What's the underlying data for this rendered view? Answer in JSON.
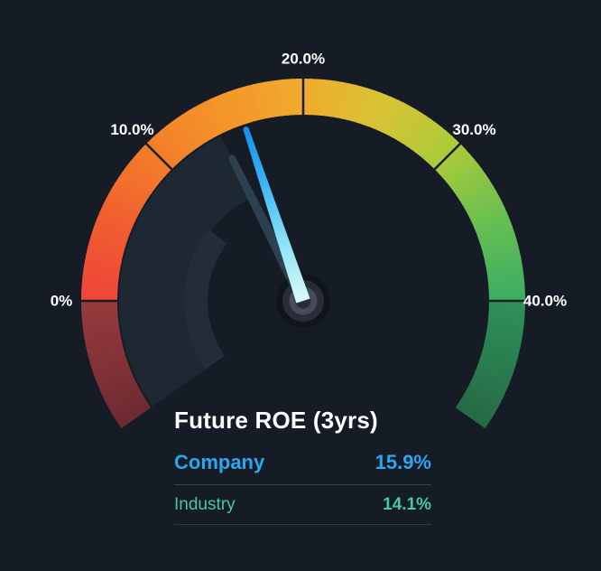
{
  "colors": {
    "background": "#151c26",
    "title": "#ffffff",
    "tick_label": "#ffffff",
    "divider_company": "#39424f",
    "divider_industry": "#313a46"
  },
  "chart_data": {
    "type": "gauge",
    "title": "Future ROE (3yrs)",
    "unit": "%",
    "min": 0,
    "max": 40,
    "ticks": [
      {
        "value": 0,
        "label": "0%"
      },
      {
        "value": 10,
        "label": "10.0%"
      },
      {
        "value": 20,
        "label": "20.0%"
      },
      {
        "value": 30,
        "label": "30.0%"
      },
      {
        "value": 40,
        "label": "40.0%"
      }
    ],
    "series": [
      {
        "name": "Company",
        "value": 15.9,
        "display": "15.9%",
        "color": "#2aa7f0"
      },
      {
        "name": "Industry",
        "value": 14.1,
        "display": "14.1%",
        "color": "#46c8a8"
      }
    ],
    "layout": {
      "size": [
        666,
        632
      ],
      "center": [
        336,
        333
      ],
      "band_outer_radius": 246,
      "band_width": 40,
      "arc_start_angle": 215,
      "arc_end_angle": -35,
      "scale_start_angle": 180,
      "scale_end_angle": 0,
      "label_radius": 268,
      "tick_gap_color": "#151c26",
      "band_color_stops": [
        {
          "t": 0.0,
          "c": "#6e2a32"
        },
        {
          "t": 0.138,
          "c": "#963a3c"
        },
        {
          "t": 0.142,
          "c": "#ee4539"
        },
        {
          "t": 0.23,
          "c": "#f05e30"
        },
        {
          "t": 0.32,
          "c": "#f37d2a"
        },
        {
          "t": 0.41,
          "c": "#f4952a"
        },
        {
          "t": 0.5,
          "c": "#f0ab2c"
        },
        {
          "t": 0.59,
          "c": "#d9c334"
        },
        {
          "t": 0.68,
          "c": "#a9cb3a"
        },
        {
          "t": 0.77,
          "c": "#67bf51"
        },
        {
          "t": 0.858,
          "c": "#3cae63"
        },
        {
          "t": 0.862,
          "c": "#2f9158"
        },
        {
          "t": 1.0,
          "c": "#256a45"
        }
      ],
      "inner_arcs": [
        {
          "start_angle": 215,
          "end_angle": 116.55,
          "radius": 166,
          "width": 76,
          "color": "#1e2833"
        },
        {
          "start_angle": 215,
          "end_angle": 143.0,
          "radius": 119,
          "width": 26,
          "color": "#222d39"
        }
      ],
      "needles": {
        "company": {
          "length": 200,
          "base_half": 8,
          "tip_half": 3.2,
          "gradient": [
            "#d9f9f8",
            "#8ae2f5",
            "#35b0f2",
            "#1b8fe8"
          ]
        },
        "industry": {
          "length": 176,
          "base_half": 6.5,
          "tip_half": 4,
          "color": "#2b4150"
        }
      },
      "hub": {
        "shadow_r": 30,
        "shadow_color": "rgba(0,0,0,0.22)",
        "outer_r": 23,
        "outer_color": "#272c36",
        "ring_r": 12,
        "ring_color": "#454c57",
        "ring_width": 7
      }
    }
  }
}
